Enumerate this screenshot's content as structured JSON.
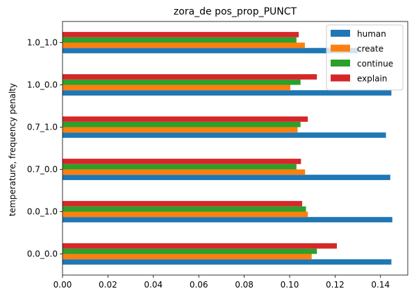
{
  "chart_data": {
    "type": "bar",
    "orientation": "horizontal",
    "title": "zora_de pos_prop_PUNCT",
    "xlabel": "",
    "ylabel": "temperature, frequency penalty",
    "categories": [
      "0.0_0.0",
      "0.0_1.0",
      "0.7_0.0",
      "0.7_1.0",
      "1.0_0.0",
      "1.0_1.0"
    ],
    "xlim": [
      0,
      0.152
    ],
    "xticks": [
      "0.00",
      "0.02",
      "0.04",
      "0.06",
      "0.08",
      "0.10",
      "0.12",
      "0.14"
    ],
    "grid": false,
    "legend_position": "top-right",
    "series": [
      {
        "name": "human",
        "color": "#1f77b4",
        "values": [
          0.1448,
          0.1452,
          0.1443,
          0.1424,
          0.1448,
          0.13
        ]
      },
      {
        "name": "create",
        "color": "#ff7f0e",
        "values": [
          0.1097,
          0.108,
          0.1068,
          0.1035,
          0.1003,
          0.1067
        ]
      },
      {
        "name": "continue",
        "color": "#2ca02c",
        "values": [
          0.112,
          0.1072,
          0.103,
          0.1048,
          0.1048,
          0.103
        ]
      },
      {
        "name": "explain",
        "color": "#d62728",
        "values": [
          0.1208,
          0.1055,
          0.105,
          0.108,
          0.112,
          0.104
        ]
      }
    ]
  }
}
